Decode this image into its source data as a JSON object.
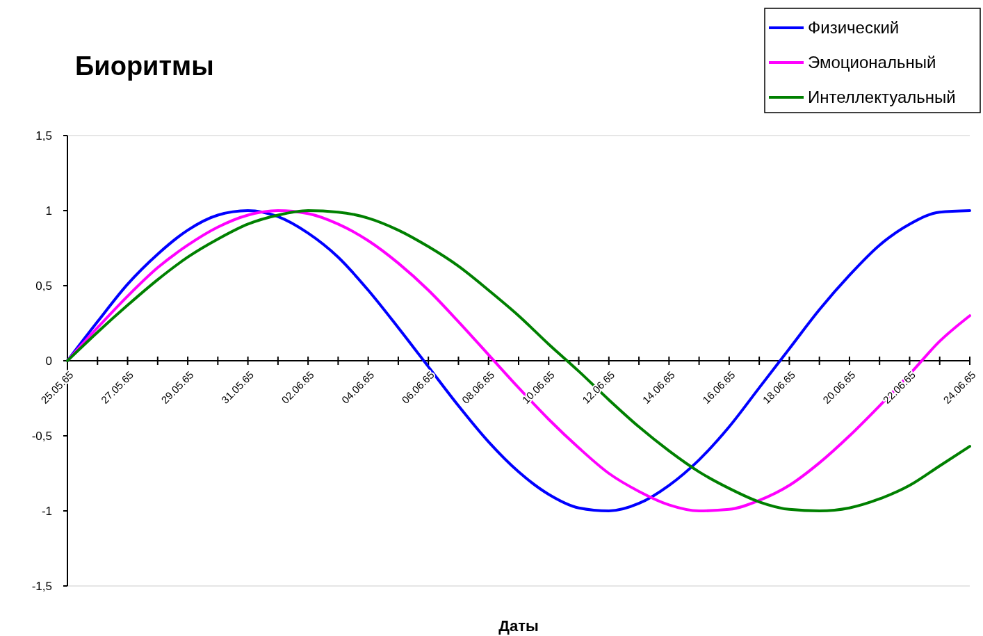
{
  "chart_data": {
    "type": "line",
    "title": "Биоритмы",
    "xlabel": "Даты",
    "categories": [
      "25.05.65",
      null,
      "27.05.65",
      null,
      "29.05.65",
      null,
      "31.05.65",
      null,
      "02.06.65",
      null,
      "04.06.65",
      null,
      "06.06.65",
      null,
      "08.06.65",
      null,
      "10.06.65",
      null,
      "12.06.65",
      null,
      "14.06.65",
      null,
      "16.06.65",
      null,
      "18.06.65",
      null,
      "20.06.65",
      null,
      "22.06.65",
      null,
      "24.06.65"
    ],
    "series": [
      {
        "name": "Физический",
        "color": "#0000ff",
        "values": [
          0,
          0.26,
          0.51,
          0.71,
          0.87,
          0.97,
          1.0,
          0.96,
          0.85,
          0.69,
          0.47,
          0.22,
          -0.04,
          -0.3,
          -0.54,
          -0.74,
          -0.89,
          -0.98,
          -1.0,
          -0.95,
          -0.83,
          -0.66,
          -0.44,
          -0.18,
          0.08,
          0.34,
          0.57,
          0.77,
          0.91,
          0.99,
          1.0
        ]
      },
      {
        "name": "Эмоциональный",
        "color": "#ff00ff",
        "values": [
          0,
          0.22,
          0.43,
          0.62,
          0.77,
          0.89,
          0.97,
          1.0,
          0.98,
          0.91,
          0.8,
          0.65,
          0.47,
          0.26,
          0.04,
          -0.18,
          -0.39,
          -0.58,
          -0.75,
          -0.87,
          -0.96,
          -1.0,
          -0.99,
          -0.93,
          -0.83,
          -0.68,
          -0.5,
          -0.3,
          -0.09,
          0.13,
          0.3
        ]
      },
      {
        "name": "Интеллектуальный",
        "color": "#008000",
        "values": [
          0,
          0.19,
          0.37,
          0.54,
          0.69,
          0.81,
          0.91,
          0.97,
          1.0,
          0.99,
          0.95,
          0.87,
          0.76,
          0.63,
          0.47,
          0.3,
          0.11,
          -0.07,
          -0.26,
          -0.44,
          -0.6,
          -0.74,
          -0.85,
          -0.94,
          -0.99,
          -1.0,
          -0.98,
          -0.92,
          -0.83,
          -0.7,
          -0.57
        ]
      }
    ],
    "ylim": [
      -1.5,
      1.5
    ],
    "yticks": [
      {
        "value": -1.5,
        "label": "-1,5"
      },
      -1,
      {
        "value": -0.5,
        "label": "-0,5"
      },
      0,
      {
        "value": 0.5,
        "label": "0,5"
      },
      1,
      {
        "value": 1.5,
        "label": "1,5"
      }
    ],
    "legend": "top right",
    "grid": false,
    "marker": "none",
    "line_style": "solid"
  }
}
